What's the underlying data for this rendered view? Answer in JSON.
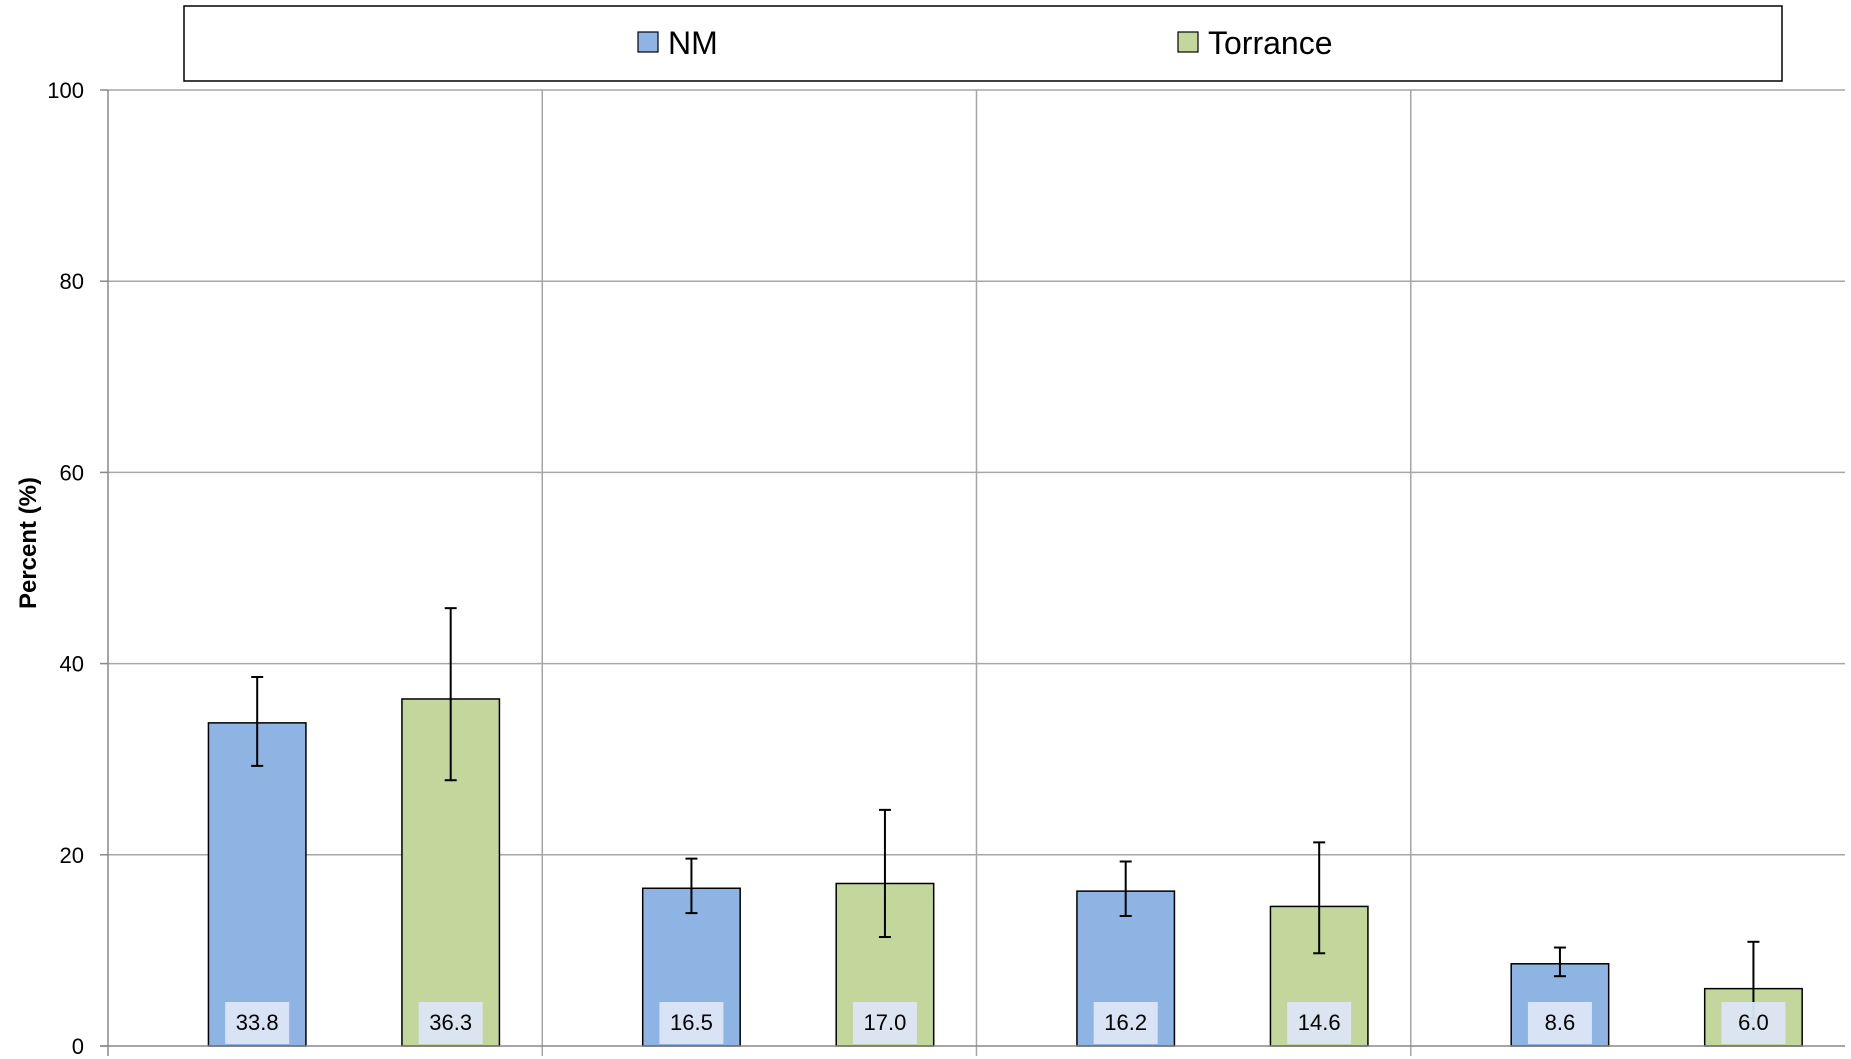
{
  "chart_data": {
    "type": "bar",
    "title": "",
    "xlabel": "",
    "ylabel": "Percent (%)",
    "ylim": [
      0,
      100
    ],
    "yticks": [
      0,
      20,
      40,
      60,
      80,
      100
    ],
    "categories": [
      "",
      "",
      "",
      ""
    ],
    "grid": true,
    "legend": {
      "placement": "top",
      "entries": [
        "NM",
        "Torrance"
      ]
    },
    "series": [
      {
        "name": "NM",
        "color": "#8eb4e3",
        "values": [
          33.8,
          16.5,
          16.2,
          8.6
        ],
        "error_low": [
          29.3,
          13.9,
          13.6,
          7.3
        ],
        "error_high": [
          38.6,
          19.6,
          19.3,
          10.3
        ],
        "labels": [
          "33.8",
          "16.5",
          "16.2",
          "8.6"
        ]
      },
      {
        "name": "Torrance",
        "color": "#c3d69b",
        "values": [
          36.3,
          17.0,
          14.6,
          6.0
        ],
        "error_low": [
          27.8,
          11.4,
          9.7,
          2.9
        ],
        "error_high": [
          45.8,
          24.7,
          21.3,
          10.9
        ],
        "labels": [
          "36.3",
          "17.0",
          "14.6",
          "6.0"
        ]
      }
    ]
  }
}
